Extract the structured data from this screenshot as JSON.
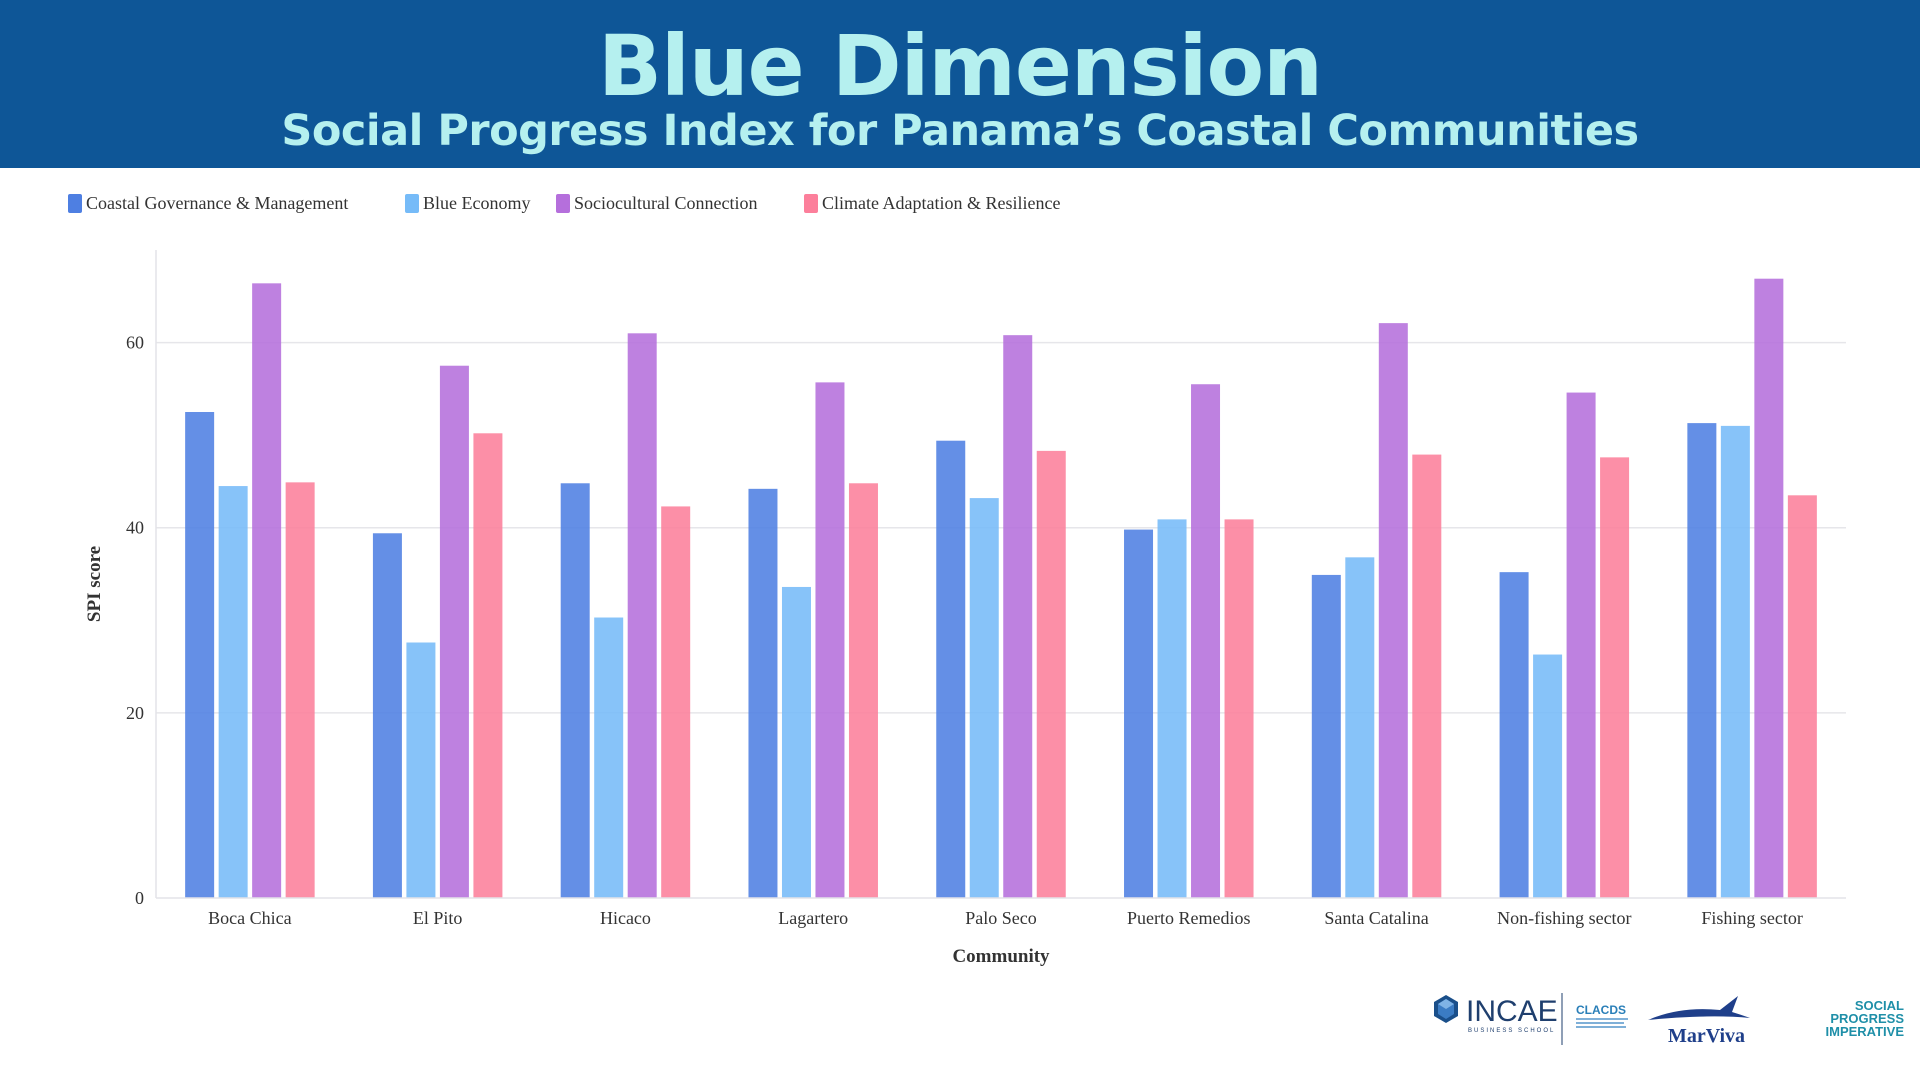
{
  "header": {
    "title": "Blue Dimension",
    "subtitle": "Social Progress Index for Panama’s Coastal Communities"
  },
  "colors": {
    "header_bg": "#0e5697",
    "title_text": "#b5f0ef",
    "series": [
      "#4e7fe2",
      "#76bbf8",
      "#b56fdc",
      "#fc7f9b"
    ]
  },
  "logos": {
    "incae": "INCAE",
    "incae_sub": "BUSINESS SCHOOL",
    "clacds": "CLACDS",
    "marviva": "MarViva",
    "spi": [
      "SOCIAL",
      "PROGRESS",
      "IMPERATIVE"
    ]
  },
  "chart_data": {
    "type": "bar",
    "title": "",
    "xlabel": "Community",
    "ylabel": "SPI score",
    "ylim": [
      0,
      70
    ],
    "yticks": [
      0,
      20,
      40,
      60
    ],
    "grid": true,
    "legend_position": "top-left",
    "categories": [
      "Boca Chica",
      "El Pito",
      "Hicaco",
      "Lagartero",
      "Palo Seco",
      "Puerto Remedios",
      "Santa Catalina",
      "Non-fishing sector",
      "Fishing sector"
    ],
    "series": [
      {
        "name": "Coastal Governance & Management",
        "values": [
          52.5,
          39.4,
          44.8,
          44.2,
          49.4,
          39.8,
          34.9,
          35.2,
          51.3
        ]
      },
      {
        "name": "Blue Economy",
        "values": [
          44.5,
          27.6,
          30.3,
          33.6,
          43.2,
          40.9,
          36.8,
          26.3,
          51.0
        ]
      },
      {
        "name": "Sociocultural Connection",
        "values": [
          66.4,
          57.5,
          61.0,
          55.7,
          60.8,
          55.5,
          62.1,
          54.6,
          66.9
        ]
      },
      {
        "name": "Climate Adaptation & Resilience",
        "values": [
          44.9,
          50.2,
          42.3,
          44.8,
          48.3,
          40.9,
          47.9,
          47.6,
          43.5
        ]
      }
    ]
  }
}
